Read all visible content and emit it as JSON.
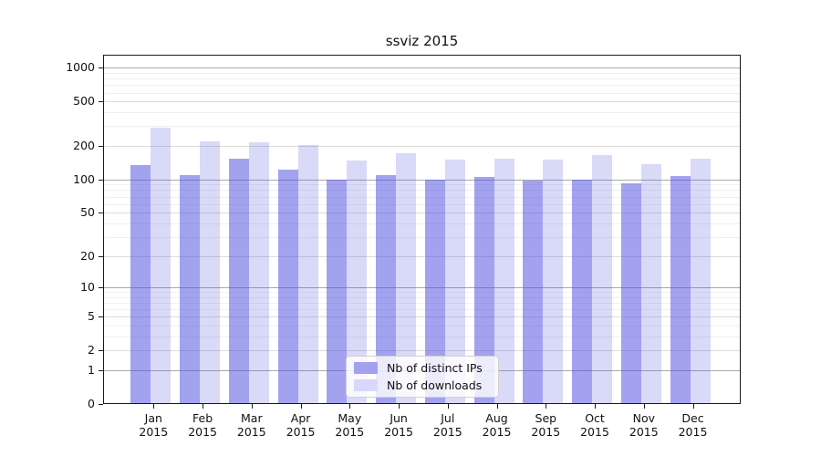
{
  "title": "ssviz 2015",
  "legend": {
    "items": [
      {
        "label": "Nb of distinct IPs",
        "swatch_color": "#a2a2ef"
      },
      {
        "label": "Nb of downloads",
        "swatch_color": "#d8d8f8"
      }
    ]
  },
  "x_axis": {
    "months": [
      "Jan",
      "Feb",
      "Mar",
      "Apr",
      "May",
      "Jun",
      "Jul",
      "Aug",
      "Sep",
      "Oct",
      "Nov",
      "Dec"
    ],
    "year": "2015"
  },
  "chart_data": {
    "type": "bar",
    "title": "ssviz 2015",
    "categories": [
      "Jan 2015",
      "Feb 2015",
      "Mar 2015",
      "Apr 2015",
      "May 2015",
      "Jun 2015",
      "Jul 2015",
      "Aug 2015",
      "Sep 2015",
      "Oct 2015",
      "Nov 2015",
      "Dec 2015"
    ],
    "series": [
      {
        "name": "Nb of distinct IPs",
        "color_rgba": "rgba(80,80,224,0.53)",
        "values": [
          135,
          110,
          155,
          122,
          100,
          110,
          100,
          106,
          97,
          100,
          92,
          107
        ]
      },
      {
        "name": "Nb of downloads",
        "color_rgba": "rgba(80,80,224,0.22)",
        "values": [
          290,
          220,
          215,
          202,
          147,
          172,
          152,
          155,
          152,
          167,
          138,
          155
        ]
      }
    ],
    "xlabel": "",
    "ylabel": "",
    "y_scale": "symlog_log10(1+y)",
    "y_ticks": [
      0,
      1,
      2,
      5,
      10,
      20,
      50,
      100,
      200,
      500,
      1000
    ],
    "y_major_ticks": [
      1,
      10,
      100,
      1000
    ],
    "y_minor_gridlines": [
      3,
      4,
      6,
      7,
      8,
      9,
      30,
      40,
      60,
      70,
      80,
      90,
      300,
      400,
      600,
      700,
      800,
      900
    ],
    "ylim": [
      0,
      1300
    ],
    "grid": true,
    "legend_position": "lower center"
  }
}
